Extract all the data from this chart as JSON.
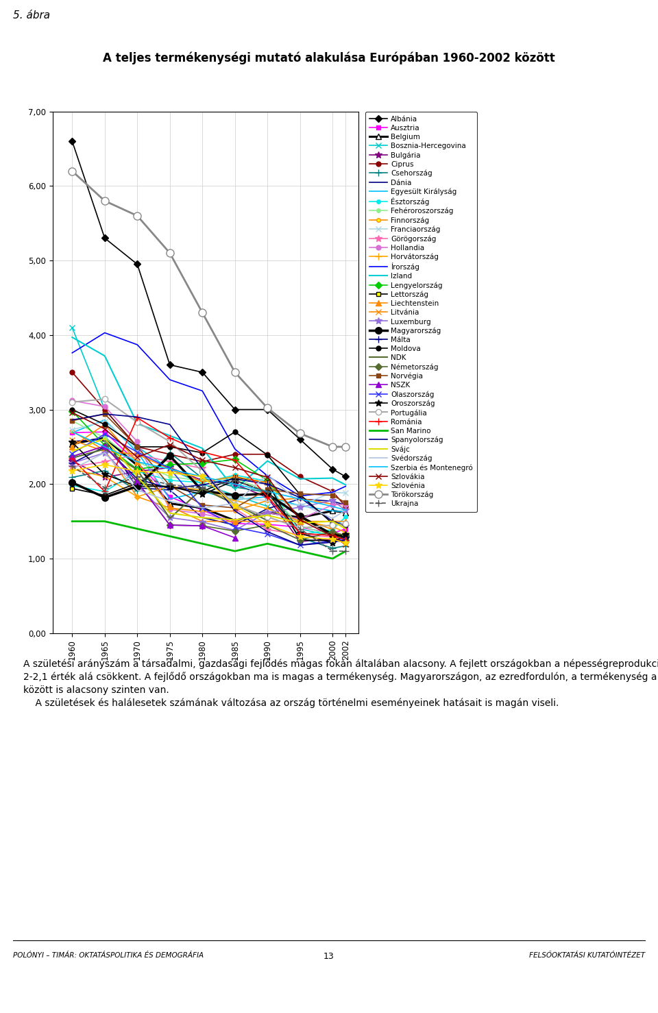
{
  "title_supra": "5. ábra",
  "title": "A teljes termékenységi mutató alakulása Európában 1960-2002 között",
  "years": [
    1960,
    1965,
    1970,
    1975,
    1980,
    1985,
    1990,
    1995,
    2000,
    2002
  ],
  "ylim": [
    0.0,
    7.0
  ],
  "yticks": [
    0.0,
    1.0,
    2.0,
    3.0,
    4.0,
    5.0,
    6.0,
    7.0
  ],
  "ytick_labels": [
    "0,00",
    "1,00",
    "2,00",
    "3,00",
    "4,00",
    "5,00",
    "6,00",
    "7,00"
  ],
  "footer_left": "Polónyi – Timár: Oktatáspolitika és demográfia",
  "footer_page": "13",
  "footer_right": "Felsőoktatási Kutatóintézet",
  "body_text_lines": [
    "A születési arányszám a társadalmi, gazdasági fejlődés magas fokán általában alacsony. A fejlett országokban a népességreprodukció a kritikus",
    "2-2,1 érték alá csökkent. A fejlődő országokban ma is magas a termékenység. Magyarországon, az ezredfordulón, a termékenység a fejlett országok",
    "között is alacsony szinten van.",
    "    A születések és halálesetek számának változása az ország történelmi eseményeinek hatásait is magán viseli."
  ],
  "series": [
    {
      "name": "Albánia",
      "color": "#000000",
      "marker": "D",
      "markersize": 5,
      "linewidth": 1.2,
      "linestyle": "-",
      "markerfacecolor": "#000000",
      "data": {
        "1960": 6.6,
        "1965": 5.3,
        "1970": 4.95,
        "1975": 3.6,
        "1980": 3.5,
        "1985": 3.0,
        "1990": 3.0,
        "1995": 2.6,
        "2000": 2.2,
        "2002": 2.1
      }
    },
    {
      "name": "Ausztria",
      "color": "#ff00ff",
      "marker": "s",
      "markersize": 5,
      "linewidth": 1.2,
      "linestyle": "-",
      "markerfacecolor": "#ff00ff",
      "data": {
        "1960": 2.69,
        "1965": 2.7,
        "1970": 2.29,
        "1975": 1.83,
        "1980": 1.65,
        "1985": 1.47,
        "1990": 1.46,
        "1995": 1.42,
        "2000": 1.34,
        "2002": 1.4
      }
    },
    {
      "name": "Belgium",
      "color": "#000000",
      "marker": "^",
      "markersize": 6,
      "linewidth": 2.2,
      "linestyle": "-",
      "markerfacecolor": "white",
      "data": {
        "1960": 2.54,
        "1965": 2.62,
        "1970": 2.25,
        "1975": 1.74,
        "1980": 1.68,
        "1985": 1.51,
        "1990": 1.62,
        "1995": 1.55,
        "2000": 1.64,
        "2002": 1.62
      }
    },
    {
      "name": "Bosznia-Hercegovina",
      "color": "#00cccc",
      "marker": "x",
      "markersize": 6,
      "linewidth": 1.2,
      "linestyle": "-",
      "markerfacecolor": "#00cccc",
      "data": {
        "1960": 4.1,
        "1965": 3.0,
        "1970": 2.5,
        "1975": 2.2,
        "1980": 2.0,
        "1985": 1.85,
        "1990": 1.7,
        "1995": 1.4,
        "2000": 1.3,
        "2002": 1.25
      }
    },
    {
      "name": "Bulgária",
      "color": "#800080",
      "marker": "*",
      "markersize": 7,
      "linewidth": 1.2,
      "linestyle": "-",
      "markerfacecolor": "#800080",
      "data": {
        "1960": 2.31,
        "1965": 2.09,
        "1970": 2.17,
        "1975": 2.22,
        "1980": 2.05,
        "1985": 2.0,
        "1990": 1.82,
        "1995": 1.23,
        "2000": 1.26,
        "2002": 1.21
      }
    },
    {
      "name": "Ciprus",
      "color": "#8b0000",
      "marker": "o",
      "markersize": 5,
      "linewidth": 1.2,
      "linestyle": "-",
      "markerfacecolor": "#8b0000",
      "data": {
        "1960": 3.5,
        "1965": 3.0,
        "1970": 2.5,
        "1975": 2.4,
        "1980": 2.3,
        "1985": 2.4,
        "1990": 2.4,
        "1995": 2.1,
        "2000": 1.9,
        "2002": 1.7
      }
    },
    {
      "name": "Csehország",
      "color": "#008080",
      "marker": "+",
      "markersize": 7,
      "linewidth": 1.2,
      "linestyle": "-",
      "markerfacecolor": "#008080",
      "data": {
        "1960": 2.09,
        "1965": 2.18,
        "1970": 1.91,
        "1975": 2.42,
        "1980": 2.08,
        "1985": 1.96,
        "1990": 1.89,
        "1995": 1.28,
        "2000": 1.14,
        "2002": 1.17
      }
    },
    {
      "name": "Dánia",
      "color": "#000080",
      "marker": "None",
      "markersize": 5,
      "linewidth": 1.2,
      "linestyle": "-",
      "markerfacecolor": "#000080",
      "data": {
        "1960": 2.57,
        "1965": 2.61,
        "1970": 1.95,
        "1975": 1.92,
        "1980": 1.55,
        "1985": 1.45,
        "1990": 1.67,
        "1995": 1.8,
        "2000": 1.77,
        "2002": 1.72
      }
    },
    {
      "name": "Egyesült Királyság",
      "color": "#00bfff",
      "marker": "None",
      "markersize": 5,
      "linewidth": 1.2,
      "linestyle": "-",
      "markerfacecolor": "#00bfff",
      "data": {
        "1960": 2.69,
        "1965": 2.86,
        "1970": 2.43,
        "1975": 1.8,
        "1980": 1.9,
        "1985": 1.79,
        "1990": 1.83,
        "1995": 1.71,
        "2000": 1.64,
        "2002": 1.63
      }
    },
    {
      "name": "Észtország",
      "color": "#00eeee",
      "marker": "o",
      "markersize": 4,
      "linewidth": 1.2,
      "linestyle": "-",
      "markerfacecolor": "#00eeee",
      "data": {
        "1960": 1.98,
        "1965": 1.9,
        "1970": 2.17,
        "1975": 2.05,
        "1980": 2.02,
        "1985": 2.12,
        "1990": 2.04,
        "1995": 1.32,
        "2000": 1.39,
        "2002": 1.56
      }
    },
    {
      "name": "Fehéroroszország",
      "color": "#90ee90",
      "marker": "o",
      "markersize": 4,
      "linewidth": 1.2,
      "linestyle": "-",
      "markerfacecolor": "#90ee90",
      "data": {
        "1960": 2.85,
        "1965": 2.62,
        "1970": 2.3,
        "1975": 2.1,
        "1980": 2.04,
        "1985": 2.08,
        "1990": 1.9,
        "1995": 1.44,
        "2000": 1.31,
        "2002": 1.25
      }
    },
    {
      "name": "Finnország",
      "color": "#ff8c00",
      "marker": "o",
      "markersize": 4,
      "linewidth": 1.2,
      "linestyle": "-",
      "markerfacecolor": "#ffff00",
      "data": {
        "1960": 2.71,
        "1965": 2.45,
        "1970": 1.83,
        "1975": 1.68,
        "1980": 1.63,
        "1985": 1.64,
        "1990": 1.78,
        "1995": 1.81,
        "2000": 1.73,
        "2002": 1.72
      }
    },
    {
      "name": "Franciaország",
      "color": "#add8e6",
      "marker": "x",
      "markersize": 6,
      "linewidth": 1.2,
      "linestyle": "-",
      "markerfacecolor": "#add8e6",
      "data": {
        "1960": 2.73,
        "1965": 2.84,
        "1970": 2.47,
        "1975": 1.93,
        "1980": 1.95,
        "1985": 1.81,
        "1990": 1.78,
        "1995": 1.71,
        "2000": 1.89,
        "2002": 1.88
      }
    },
    {
      "name": "Görögország",
      "color": "#ff69b4",
      "marker": "*",
      "markersize": 7,
      "linewidth": 1.2,
      "linestyle": "-",
      "markerfacecolor": "#ff69b4",
      "data": {
        "1960": 2.23,
        "1965": 2.3,
        "1970": 2.4,
        "1975": 2.3,
        "1980": 2.21,
        "1985": 1.67,
        "1990": 1.39,
        "1995": 1.32,
        "2000": 1.29,
        "2002": 1.27
      }
    },
    {
      "name": "Hollandia",
      "color": "#da70d6",
      "marker": "o",
      "markersize": 5,
      "linewidth": 1.2,
      "linestyle": "-",
      "markerfacecolor": "#da70d6",
      "data": {
        "1960": 3.12,
        "1965": 3.04,
        "1970": 2.57,
        "1975": 1.66,
        "1980": 1.6,
        "1985": 1.51,
        "1990": 1.62,
        "1995": 1.53,
        "2000": 1.72,
        "2002": 1.73
      }
    },
    {
      "name": "Horvátország",
      "color": "#ffa500",
      "marker": "+",
      "markersize": 7,
      "linewidth": 1.2,
      "linestyle": "-",
      "markerfacecolor": "#ffa500",
      "data": {
        "1960": 2.2,
        "1965": 2.1,
        "1970": 1.83,
        "1975": 1.97,
        "1980": 1.92,
        "1985": 1.78,
        "1990": 1.67,
        "1995": 1.5,
        "2000": 1.43,
        "2002": 1.35
      }
    },
    {
      "name": "Írország",
      "color": "#0000ff",
      "marker": "None",
      "markersize": 5,
      "linewidth": 1.2,
      "linestyle": "-",
      "markerfacecolor": "#0000ff",
      "data": {
        "1960": 3.76,
        "1965": 4.03,
        "1970": 3.87,
        "1975": 3.4,
        "1980": 3.25,
        "1985": 2.47,
        "1990": 2.11,
        "1995": 1.84,
        "2000": 1.89,
        "2002": 1.97
      }
    },
    {
      "name": "Izland",
      "color": "#00ced1",
      "marker": "None",
      "markersize": 5,
      "linewidth": 1.5,
      "linestyle": "-",
      "markerfacecolor": "#00ced1",
      "data": {
        "1960": 3.97,
        "1965": 3.72,
        "1970": 2.81,
        "1975": 2.65,
        "1980": 2.48,
        "1985": 1.93,
        "1990": 2.31,
        "1995": 2.07,
        "2000": 2.08,
        "2002": 1.99
      }
    },
    {
      "name": "Lengyelország",
      "color": "#00cc00",
      "marker": "D",
      "markersize": 5,
      "linewidth": 1.2,
      "linestyle": "-",
      "markerfacecolor": "#00cc00",
      "data": {
        "1960": 2.98,
        "1965": 2.52,
        "1970": 2.2,
        "1975": 2.26,
        "1980": 2.28,
        "1985": 2.33,
        "1990": 2.05,
        "1995": 1.55,
        "2000": 1.34,
        "2002": 1.25
      }
    },
    {
      "name": "Lettország",
      "color": "#000000",
      "marker": "s",
      "markersize": 5,
      "linewidth": 1.2,
      "linestyle": "-",
      "markerfacecolor": "#ffff00",
      "data": {
        "1960": 1.94,
        "1965": 1.85,
        "1970": 2.01,
        "1975": 1.96,
        "1980": 1.9,
        "1985": 2.09,
        "1990": 2.02,
        "1995": 1.25,
        "2000": 1.24,
        "2002": 1.24
      }
    },
    {
      "name": "Liechtenstein",
      "color": "#ff8c00",
      "marker": "^",
      "markersize": 6,
      "linewidth": 1.2,
      "linestyle": "-",
      "markerfacecolor": "#ff8c00",
      "data": {
        "1960": 2.5,
        "1965": 2.8,
        "1970": 2.3,
        "1975": 1.7,
        "1980": 1.5,
        "1985": 1.5,
        "1990": 1.5,
        "1995": 1.5,
        "2000": 1.5,
        "2002": 1.5
      }
    },
    {
      "name": "Litvánia",
      "color": "#ff8c00",
      "marker": "x",
      "markersize": 6,
      "linewidth": 1.2,
      "linestyle": "-",
      "markerfacecolor": "#ff8c00",
      "data": {
        "1960": 2.59,
        "1965": 2.44,
        "1970": 2.4,
        "1975": 2.2,
        "1980": 2.03,
        "1985": 2.1,
        "1990": 2.02,
        "1995": 1.55,
        "2000": 1.39,
        "2002": 1.24
      }
    },
    {
      "name": "Luxemburg",
      "color": "#9370db",
      "marker": "*",
      "markersize": 7,
      "linewidth": 1.2,
      "linestyle": "-",
      "markerfacecolor": "#9370db",
      "data": {
        "1960": 2.28,
        "1965": 2.42,
        "1970": 1.98,
        "1975": 1.55,
        "1980": 1.49,
        "1985": 1.38,
        "1990": 1.62,
        "1995": 1.69,
        "2000": 1.78,
        "2002": 1.65
      }
    },
    {
      "name": "Magyarország",
      "color": "#000000",
      "marker": "o",
      "markersize": 7,
      "linewidth": 2.5,
      "linestyle": "-",
      "markerfacecolor": "#000000",
      "data": {
        "1960": 2.02,
        "1965": 1.82,
        "1970": 1.97,
        "1975": 2.38,
        "1980": 1.91,
        "1985": 1.85,
        "1990": 1.87,
        "1995": 1.57,
        "2000": 1.32,
        "2002": 1.3
      }
    },
    {
      "name": "Málta",
      "color": "#00008b",
      "marker": "+",
      "markersize": 7,
      "linewidth": 1.2,
      "linestyle": "-",
      "markerfacecolor": "#00008b",
      "data": {
        "1960": 2.28,
        "1965": 2.5,
        "1970": 2.07,
        "1975": 1.94,
        "1980": 1.99,
        "1985": 2.07,
        "1990": 2.0,
        "1995": 1.82,
        "2000": 1.5,
        "2002": 1.45
      }
    },
    {
      "name": "Moldova",
      "color": "#000000",
      "marker": "o",
      "markersize": 5,
      "linewidth": 1.2,
      "linestyle": "-",
      "markerfacecolor": "#000000",
      "data": {
        "1960": 3.0,
        "1965": 2.8,
        "1970": 2.5,
        "1975": 2.5,
        "1980": 2.42,
        "1985": 2.7,
        "1990": 2.39,
        "1995": 1.86,
        "2000": 1.47,
        "2002": 1.45
      }
    },
    {
      "name": "NDK",
      "color": "#556b2f",
      "marker": "None",
      "markersize": 5,
      "linewidth": 1.5,
      "linestyle": "-",
      "markerfacecolor": "#556b2f",
      "data": {
        "1960": 2.35,
        "1965": 2.47,
        "1970": 2.19,
        "1975": 1.54,
        "1980": 1.94,
        "1985": 1.73,
        "1990": 1.51
      }
    },
    {
      "name": "Németország",
      "color": "#556b2f",
      "marker": "D",
      "markersize": 5,
      "linewidth": 1.2,
      "linestyle": "-",
      "markerfacecolor": "#556b2f",
      "data": {
        "1960": 2.37,
        "1965": 2.51,
        "1970": 2.03,
        "1975": 1.45,
        "1980": 1.44,
        "1985": 1.37,
        "1990": 1.45,
        "1995": 1.25,
        "2000": 1.36,
        "2002": 1.31
      }
    },
    {
      "name": "Norvégia",
      "color": "#8b4513",
      "marker": "s",
      "markersize": 5,
      "linewidth": 1.2,
      "linestyle": "-",
      "markerfacecolor": "#8b4513",
      "data": {
        "1960": 2.85,
        "1965": 2.94,
        "1970": 2.5,
        "1975": 1.98,
        "1980": 1.72,
        "1985": 1.68,
        "1990": 1.93,
        "1995": 1.87,
        "2000": 1.85,
        "2002": 1.75
      }
    },
    {
      "name": "NSZK",
      "color": "#9400d3",
      "marker": "^",
      "markersize": 6,
      "linewidth": 1.2,
      "linestyle": "-",
      "markerfacecolor": "#9400d3",
      "data": {
        "1960": 2.37,
        "1965": 2.51,
        "1970": 2.03,
        "1975": 1.45,
        "1980": 1.44,
        "1985": 1.28
      }
    },
    {
      "name": "Olaszország",
      "color": "#3333ff",
      "marker": "x",
      "markersize": 6,
      "linewidth": 1.2,
      "linestyle": "-",
      "markerfacecolor": "#3333ff",
      "data": {
        "1960": 2.41,
        "1965": 2.67,
        "1970": 2.43,
        "1975": 2.21,
        "1980": 1.68,
        "1985": 1.42,
        "1990": 1.33,
        "1995": 1.18,
        "2000": 1.24,
        "2002": 1.27
      }
    },
    {
      "name": "Oroszország",
      "color": "#000000",
      "marker": "*",
      "markersize": 7,
      "linewidth": 1.2,
      "linestyle": "-",
      "markerfacecolor": "#000000",
      "data": {
        "1960": 2.56,
        "1965": 2.13,
        "1970": 1.97,
        "1975": 1.97,
        "1980": 1.86,
        "1985": 2.05,
        "1990": 1.89,
        "1995": 1.34,
        "2000": 1.21,
        "2002": 1.32
      }
    },
    {
      "name": "Portugália",
      "color": "#aaaaaa",
      "marker": "o",
      "markersize": 6,
      "linewidth": 1.5,
      "linestyle": "-",
      "markerfacecolor": "white",
      "data": {
        "1960": 3.1,
        "1965": 3.14,
        "1970": 2.83,
        "1975": 2.57,
        "1980": 2.17,
        "1985": 1.72,
        "1990": 1.56,
        "1995": 1.41,
        "2000": 1.45,
        "2002": 1.47
      }
    },
    {
      "name": "Románia",
      "color": "#ff0000",
      "marker": "+",
      "markersize": 7,
      "linewidth": 1.2,
      "linestyle": "-",
      "markerfacecolor": "#ff0000",
      "data": {
        "1960": 2.34,
        "1965": 1.9,
        "1970": 2.89,
        "1975": 2.62,
        "1980": 2.43,
        "1985": 2.32,
        "1990": 1.83,
        "1995": 1.34,
        "2000": 1.31,
        "2002": 1.25
      }
    },
    {
      "name": "San Marino",
      "color": "#00bb00",
      "marker": "None",
      "markersize": 5,
      "linewidth": 2.0,
      "linestyle": "-",
      "markerfacecolor": "#00bb00",
      "data": {
        "1960": 1.5,
        "1965": 1.5,
        "1970": 1.4,
        "1975": 1.3,
        "1980": 1.2,
        "1985": 1.1,
        "1990": 1.2,
        "1995": 1.1,
        "2000": 1.0,
        "2002": 1.1
      }
    },
    {
      "name": "Spanyolország",
      "color": "#00008b",
      "marker": "None",
      "markersize": 5,
      "linewidth": 1.2,
      "linestyle": "-",
      "markerfacecolor": "#00008b",
      "data": {
        "1960": 2.86,
        "1965": 2.94,
        "1970": 2.9,
        "1975": 2.8,
        "1980": 2.2,
        "1985": 1.64,
        "1990": 1.36,
        "1995": 1.18,
        "2000": 1.22,
        "2002": 1.25
      }
    },
    {
      "name": "Svájc",
      "color": "#dddd00",
      "marker": "None",
      "markersize": 5,
      "linewidth": 1.5,
      "linestyle": "-",
      "markerfacecolor": "#dddd00",
      "data": {
        "1960": 2.44,
        "1965": 2.61,
        "1970": 2.1,
        "1975": 1.61,
        "1980": 1.55,
        "1985": 1.52,
        "1990": 1.58,
        "1995": 1.48,
        "2000": 1.5,
        "2002": 1.4
      }
    },
    {
      "name": "Svédország",
      "color": "#b0c4de",
      "marker": "None",
      "markersize": 5,
      "linewidth": 1.2,
      "linestyle": "-",
      "markerfacecolor": "#b0c4de",
      "data": {
        "1960": 2.2,
        "1965": 2.42,
        "1970": 1.92,
        "1975": 1.77,
        "1980": 1.68,
        "1985": 1.74,
        "1990": 2.13,
        "1995": 1.74,
        "2000": 1.54,
        "2002": 1.65
      }
    },
    {
      "name": "Szerbia és Montenegró",
      "color": "#00bfff",
      "marker": "None",
      "markersize": 5,
      "linewidth": 1.2,
      "linestyle": "-",
      "markerfacecolor": "#00bfff",
      "data": {
        "1960": 2.7,
        "1965": 2.5,
        "1970": 2.3,
        "1975": 2.2,
        "1980": 2.1,
        "1985": 2.0,
        "1990": 1.9,
        "1995": 1.8,
        "2000": 1.7,
        "2002": 1.65
      }
    },
    {
      "name": "Szlovákia",
      "color": "#8b0000",
      "marker": "x",
      "markersize": 6,
      "linewidth": 1.2,
      "linestyle": "-",
      "markerfacecolor": "#8b0000",
      "data": {
        "1960": 2.96,
        "1965": 2.74,
        "1970": 2.36,
        "1975": 2.53,
        "1980": 2.32,
        "1985": 2.22,
        "1990": 2.09,
        "1995": 1.52,
        "2000": 1.3,
        "2002": 1.19
      }
    },
    {
      "name": "Szlovénia",
      "color": "#ffd700",
      "marker": "*",
      "markersize": 7,
      "linewidth": 1.2,
      "linestyle": "-",
      "markerfacecolor": "#ffd700",
      "data": {
        "1960": 2.18,
        "1965": 2.26,
        "1970": 2.17,
        "1975": 2.15,
        "1980": 2.1,
        "1985": 1.71,
        "1990": 1.46,
        "1995": 1.29,
        "2000": 1.26,
        "2002": 1.21
      }
    },
    {
      "name": "Törökország",
      "color": "#888888",
      "marker": "o",
      "markersize": 8,
      "linewidth": 2.0,
      "linestyle": "-",
      "markerfacecolor": "white",
      "data": {
        "1960": 6.2,
        "1965": 5.8,
        "1970": 5.6,
        "1975": 5.1,
        "1980": 4.3,
        "1985": 3.5,
        "1990": 3.02,
        "1995": 2.68,
        "2000": 2.5,
        "2002": 2.5
      }
    },
    {
      "name": "Ukrajna",
      "color": "#555555",
      "marker": "+",
      "markersize": 7,
      "linewidth": 1.2,
      "linestyle": "--",
      "markerfacecolor": "#555555",
      "data": {
        "1960": 2.24,
        "1965": 1.95,
        "1970": 2.1,
        "1975": 1.99,
        "1980": 1.95,
        "1985": 2.05,
        "1990": 1.89,
        "1995": 1.4,
        "2000": 1.1,
        "2002": 1.1
      }
    }
  ]
}
